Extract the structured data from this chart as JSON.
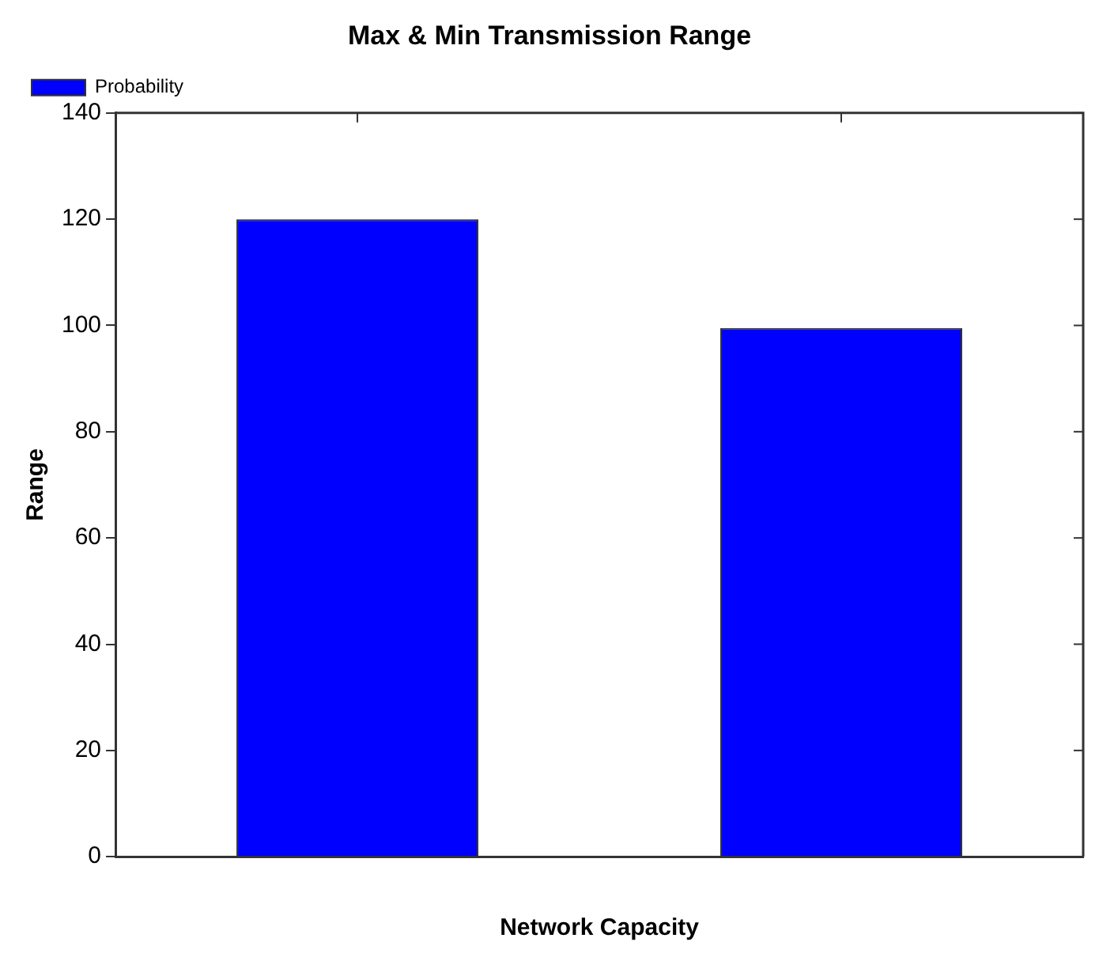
{
  "chart_data": {
    "type": "bar",
    "title": "Max & Min Transmission Range",
    "xlabel": "Network Capacity",
    "ylabel": "Range",
    "categories": [
      null,
      null
    ],
    "series": [
      {
        "name": "Probability",
        "color": "#0000ff",
        "values": [
          120,
          99.5
        ]
      }
    ],
    "ylim": [
      0,
      140
    ],
    "yticks": [
      0,
      20,
      40,
      60,
      80,
      100,
      120,
      140
    ],
    "grid": false,
    "legend": "top left"
  }
}
